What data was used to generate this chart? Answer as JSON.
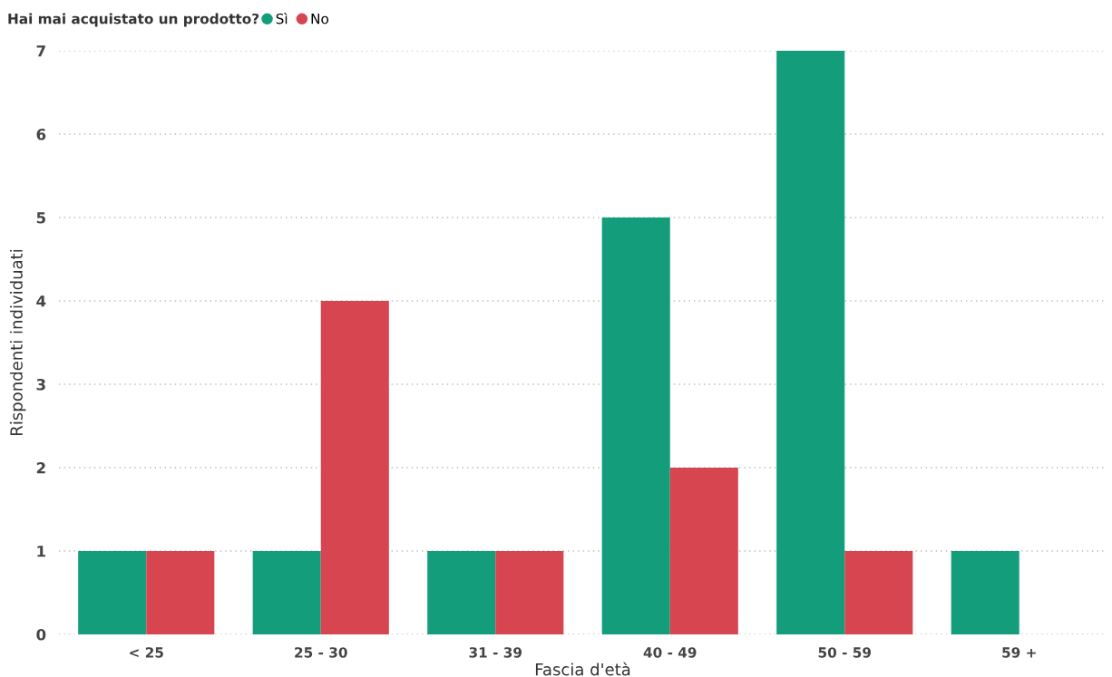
{
  "chart_data": {
    "type": "bar",
    "legend_title": "Hai mai acquistato un prodotto?",
    "xlabel": "Fascia d'età",
    "ylabel": "Rispondenti individuati",
    "categories": [
      "< 25",
      "25 - 30",
      "31 - 39",
      "40 - 49",
      "50 - 59",
      "59 +"
    ],
    "series": [
      {
        "name": "Sì",
        "color": "#139d7b",
        "values": [
          1,
          1,
          1,
          5,
          7,
          1
        ]
      },
      {
        "name": "No",
        "color": "#d64550",
        "values": [
          1,
          4,
          1,
          2,
          1,
          null
        ]
      }
    ],
    "ylim": [
      0,
      7
    ],
    "yticks": [
      0,
      1,
      2,
      3,
      4,
      5,
      6,
      7
    ],
    "grid": "y",
    "legend": "top left"
  }
}
